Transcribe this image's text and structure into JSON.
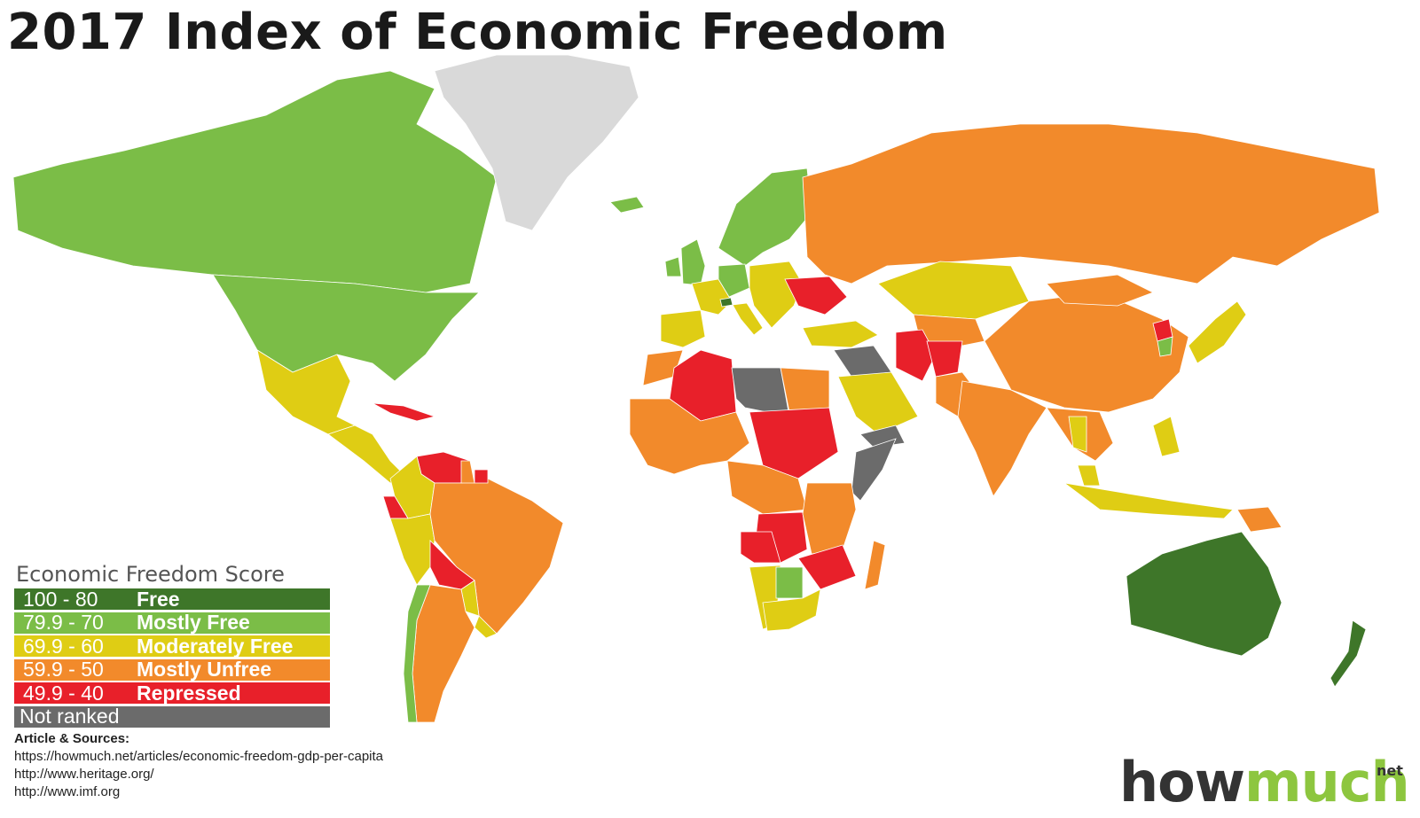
{
  "title": "2017 Index of Economic Freedom",
  "colors": {
    "free": "#3e7629",
    "mostly_free": "#7bbd47",
    "moderately_free": "#dfcd14",
    "mostly_unfree": "#f28a2b",
    "repressed": "#e8202a",
    "not_ranked": "#6b6b6b",
    "no_data": "#d9d9d9"
  },
  "legend": {
    "title": "Economic Freedom Score",
    "items": [
      {
        "range": "100 - 80",
        "label": "Free",
        "color": "#3e7629"
      },
      {
        "range": "79.9 - 70",
        "label": "Mostly Free",
        "color": "#7bbd47"
      },
      {
        "range": "69.9 - 60",
        "label": "Moderately Free",
        "color": "#dfcd14"
      },
      {
        "range": "59.9 - 50",
        "label": "Mostly Unfree",
        "color": "#f28a2b"
      },
      {
        "range": "49.9 - 40",
        "label": "Repressed",
        "color": "#e8202a"
      },
      {
        "range": "",
        "label": "Not ranked",
        "color": "#6b6b6b"
      }
    ]
  },
  "sources": {
    "heading": "Article & Sources:",
    "links": [
      "https://howmuch.net/articles/economic-freedom-gdp-per-capita",
      "http://www.heritage.org/",
      "http://www.imf.org"
    ]
  },
  "logo": {
    "how": "how",
    "much": "much",
    "net": "net"
  },
  "regions": [
    {
      "name": "canada",
      "category": "mostly_free"
    },
    {
      "name": "united-states",
      "category": "mostly_free"
    },
    {
      "name": "mexico",
      "category": "moderately_free"
    },
    {
      "name": "central-america",
      "category": "moderately_free"
    },
    {
      "name": "cuba",
      "category": "repressed"
    },
    {
      "name": "greenland",
      "category": "no_data"
    },
    {
      "name": "iceland",
      "category": "mostly_free"
    },
    {
      "name": "venezuela",
      "category": "repressed"
    },
    {
      "name": "colombia",
      "category": "moderately_free"
    },
    {
      "name": "ecuador",
      "category": "repressed"
    },
    {
      "name": "peru",
      "category": "moderately_free"
    },
    {
      "name": "brazil",
      "category": "mostly_unfree"
    },
    {
      "name": "bolivia",
      "category": "repressed"
    },
    {
      "name": "chile",
      "category": "mostly_free"
    },
    {
      "name": "argentina",
      "category": "mostly_unfree"
    },
    {
      "name": "paraguay",
      "category": "moderately_free"
    },
    {
      "name": "uruguay",
      "category": "moderately_free"
    },
    {
      "name": "guyana",
      "category": "mostly_unfree"
    },
    {
      "name": "suriname",
      "category": "repressed"
    },
    {
      "name": "united-kingdom",
      "category": "mostly_free"
    },
    {
      "name": "ireland",
      "category": "mostly_free"
    },
    {
      "name": "scandinavia",
      "category": "mostly_free"
    },
    {
      "name": "iberia",
      "category": "moderately_free"
    },
    {
      "name": "france",
      "category": "moderately_free"
    },
    {
      "name": "germany",
      "category": "mostly_free"
    },
    {
      "name": "switzerland",
      "category": "free"
    },
    {
      "name": "italy",
      "category": "moderately_free"
    },
    {
      "name": "eastern-europe",
      "category": "moderately_free"
    },
    {
      "name": "ukraine",
      "category": "repressed"
    },
    {
      "name": "russia",
      "category": "mostly_unfree"
    },
    {
      "name": "kazakhstan",
      "category": "moderately_free"
    },
    {
      "name": "central-asia",
      "category": "mostly_unfree"
    },
    {
      "name": "turkey",
      "category": "moderately_free"
    },
    {
      "name": "iran",
      "category": "repressed"
    },
    {
      "name": "afghanistan",
      "category": "repressed"
    },
    {
      "name": "iraq-syria",
      "category": "not_ranked"
    },
    {
      "name": "saudi-arabia",
      "category": "moderately_free"
    },
    {
      "name": "yemen",
      "category": "not_ranked"
    },
    {
      "name": "pakistan",
      "category": "mostly_unfree"
    },
    {
      "name": "india",
      "category": "mostly_unfree"
    },
    {
      "name": "china",
      "category": "mostly_unfree"
    },
    {
      "name": "mongolia",
      "category": "mostly_unfree"
    },
    {
      "name": "north-korea",
      "category": "repressed"
    },
    {
      "name": "south-korea",
      "category": "mostly_free"
    },
    {
      "name": "japan",
      "category": "moderately_free"
    },
    {
      "name": "southeast-asia",
      "category": "mostly_unfree"
    },
    {
      "name": "thailand",
      "category": "moderately_free"
    },
    {
      "name": "malaysia",
      "category": "moderately_free"
    },
    {
      "name": "indonesia",
      "category": "moderately_free"
    },
    {
      "name": "philippines",
      "category": "moderately_free"
    },
    {
      "name": "papua-new-guinea",
      "category": "mostly_unfree"
    },
    {
      "name": "australia",
      "category": "free"
    },
    {
      "name": "new-zealand",
      "category": "free"
    },
    {
      "name": "morocco",
      "category": "mostly_unfree"
    },
    {
      "name": "algeria",
      "category": "repressed"
    },
    {
      "name": "libya",
      "category": "not_ranked"
    },
    {
      "name": "egypt",
      "category": "mostly_unfree"
    },
    {
      "name": "sudan",
      "category": "repressed"
    },
    {
      "name": "somalia",
      "category": "not_ranked"
    },
    {
      "name": "west-africa",
      "category": "mostly_unfree"
    },
    {
      "name": "central-africa",
      "category": "mostly_unfree"
    },
    {
      "name": "congo",
      "category": "repressed"
    },
    {
      "name": "angola",
      "category": "repressed"
    },
    {
      "name": "east-africa",
      "category": "mostly_unfree"
    },
    {
      "name": "zimbabwe",
      "category": "repressed"
    },
    {
      "name": "namibia",
      "category": "moderately_free"
    },
    {
      "name": "botswana",
      "category": "mostly_free"
    },
    {
      "name": "south-africa",
      "category": "moderately_free"
    },
    {
      "name": "madagascar",
      "category": "mostly_unfree"
    }
  ]
}
